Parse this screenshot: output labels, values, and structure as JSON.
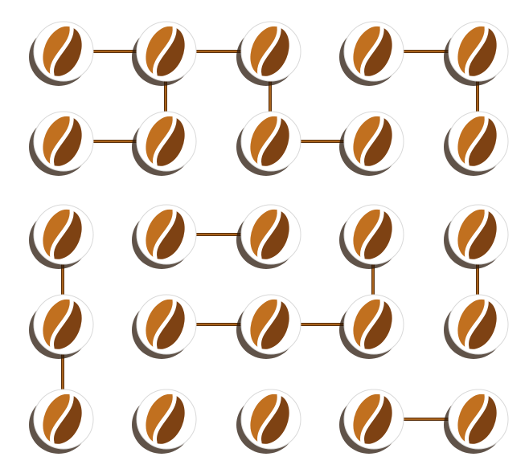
{
  "board": {
    "rows": 5,
    "cols": 5,
    "tile_icon": "coffee-bean-icon",
    "colors": {
      "background": "#ffffff",
      "tile_face": "#ffffff",
      "tile_shadow": "#2b1a0c",
      "bean_light": "#c1701f",
      "bean_dark": "#7e4213",
      "bean_seam": "#ffffff",
      "link": "#a8621c",
      "link_edge": "#5a3210"
    },
    "links": [
      {
        "from": [
          0,
          0
        ],
        "to": [
          0,
          1
        ]
      },
      {
        "from": [
          0,
          1
        ],
        "to": [
          0,
          2
        ]
      },
      {
        "from": [
          0,
          3
        ],
        "to": [
          0,
          4
        ]
      },
      {
        "from": [
          0,
          1
        ],
        "to": [
          1,
          1
        ]
      },
      {
        "from": [
          0,
          2
        ],
        "to": [
          1,
          2
        ]
      },
      {
        "from": [
          0,
          4
        ],
        "to": [
          1,
          4
        ]
      },
      {
        "from": [
          1,
          0
        ],
        "to": [
          1,
          1
        ]
      },
      {
        "from": [
          1,
          2
        ],
        "to": [
          1,
          3
        ]
      },
      {
        "from": [
          2,
          1
        ],
        "to": [
          2,
          2
        ]
      },
      {
        "from": [
          2,
          0
        ],
        "to": [
          3,
          0
        ]
      },
      {
        "from": [
          2,
          3
        ],
        "to": [
          3,
          3
        ]
      },
      {
        "from": [
          2,
          4
        ],
        "to": [
          3,
          4
        ]
      },
      {
        "from": [
          3,
          1
        ],
        "to": [
          3,
          2
        ]
      },
      {
        "from": [
          3,
          2
        ],
        "to": [
          3,
          3
        ]
      },
      {
        "from": [
          3,
          0
        ],
        "to": [
          4,
          0
        ]
      },
      {
        "from": [
          4,
          3
        ],
        "to": [
          4,
          4
        ]
      }
    ]
  }
}
